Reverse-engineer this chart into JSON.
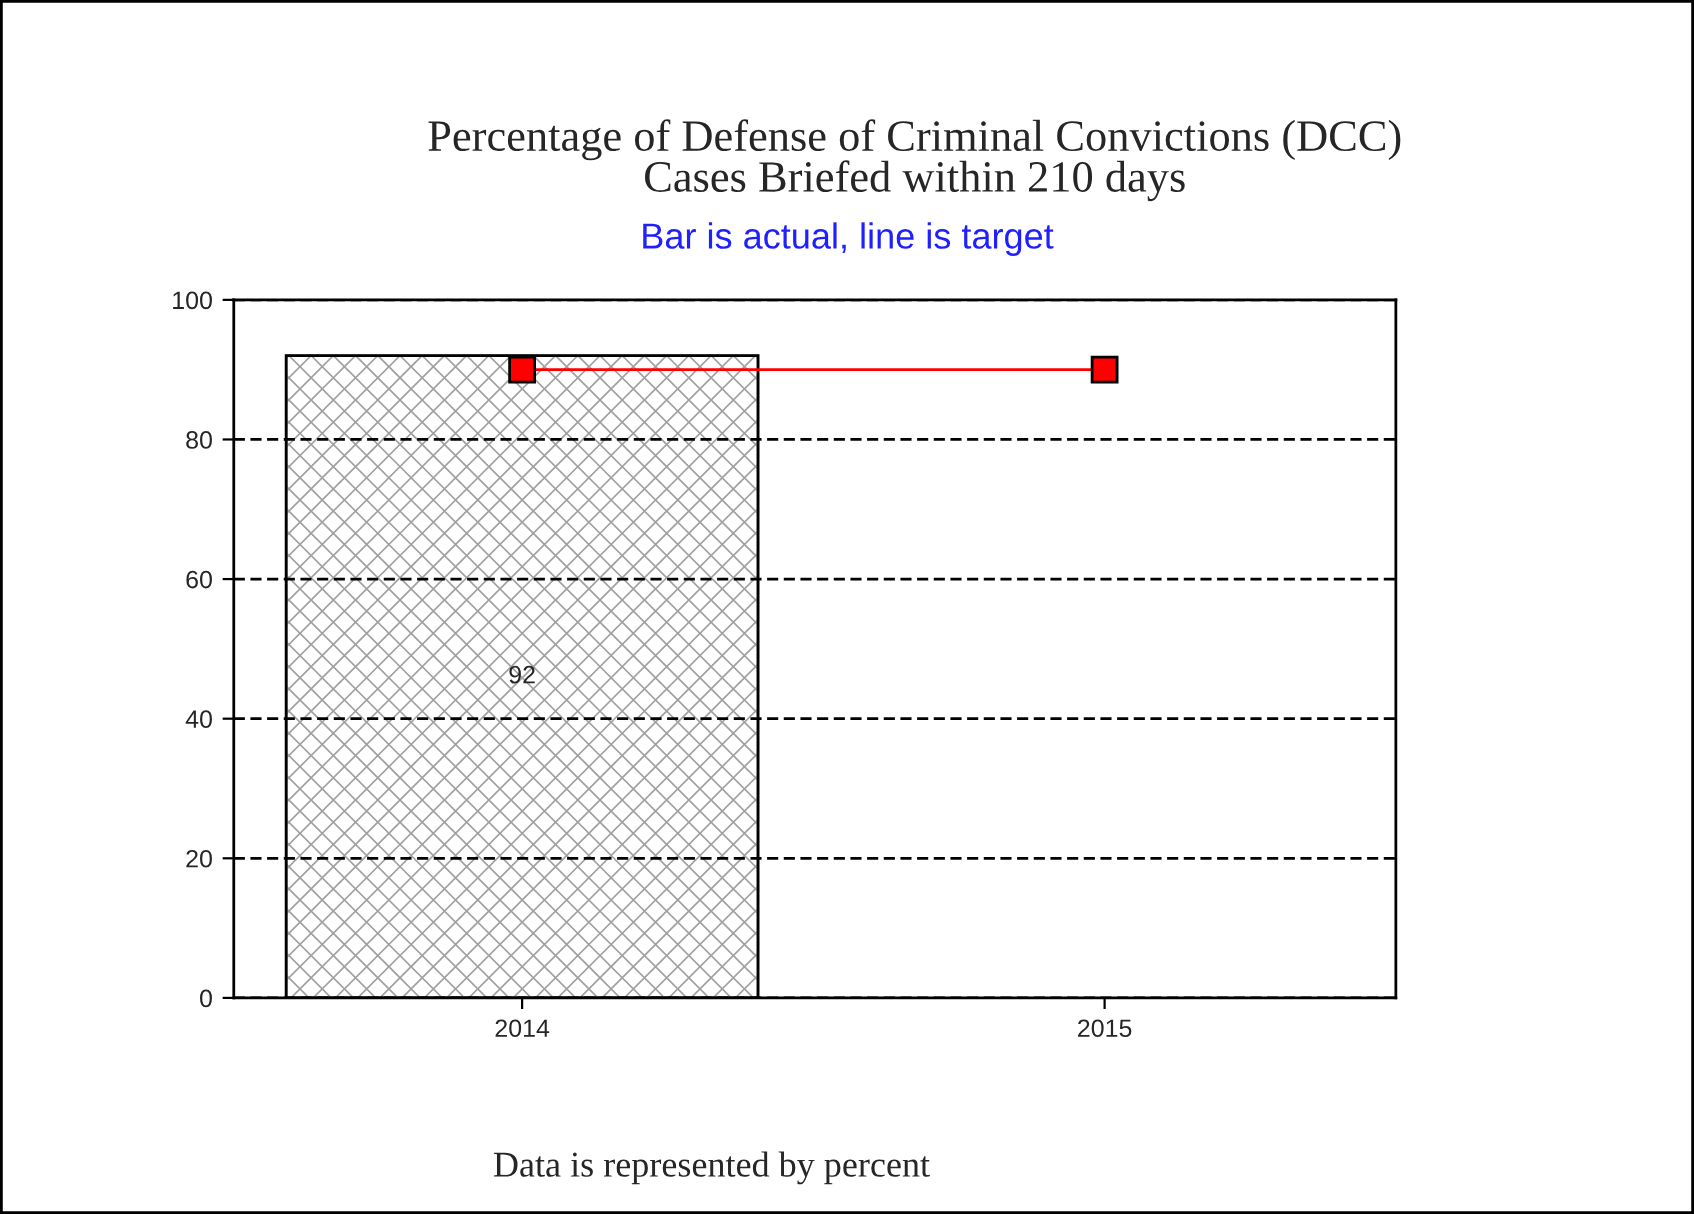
{
  "chart_data": {
    "type": "bar",
    "title": "Percentage of Defense of Criminal Convictions (DCC)\nCases Briefed within 210 days",
    "subtitle": "Bar is actual, line is target",
    "categories": [
      "2014",
      "2015"
    ],
    "series": [
      {
        "color": "#a0a0a0",
        "values": [
          92,
          null
        ],
        "value_labels": [
          "92",
          null
        ]
      },
      {
        "type": "line",
        "color": "#ff0000",
        "values": [
          90,
          90
        ],
        "marker": "square",
        "line_style": "solid"
      }
    ],
    "ylim": [
      0,
      100
    ],
    "yticks": [
      0,
      20,
      40,
      60,
      80,
      100
    ],
    "grid": "y",
    "legend": false,
    "annotations": [
      "Data is represented by percent"
    ]
  }
}
